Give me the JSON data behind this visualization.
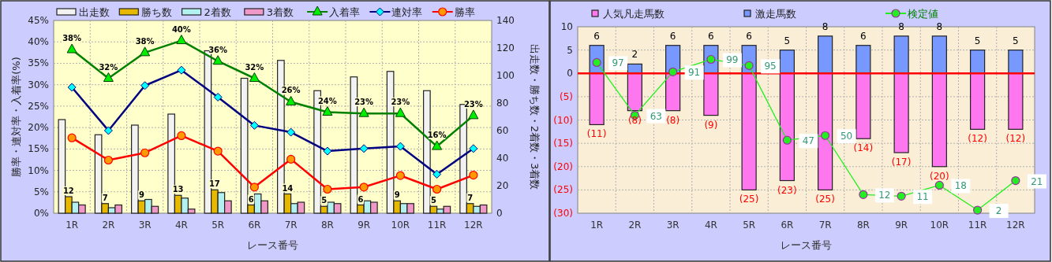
{
  "chart_data": [
    {
      "type": "bar",
      "categories": [
        "1R",
        "2R",
        "3R",
        "4R",
        "5R",
        "6R",
        "7R",
        "8R",
        "9R",
        "10R",
        "11R",
        "12R"
      ],
      "xlabel": "レース番号",
      "ylabel": "勝率・連対率・入着率(%)",
      "y2label": "出走数・勝ち数・2着数・3着数",
      "ylim": [
        0,
        45
      ],
      "yticks": [
        {
          "value": 0,
          "label": "0%"
        },
        {
          "value": 5,
          "label": "5%"
        },
        {
          "value": 10,
          "label": "10%"
        },
        {
          "value": 15,
          "label": "15%"
        },
        {
          "value": 20,
          "label": "20%"
        },
        {
          "value": 25,
          "label": "25%"
        },
        {
          "value": 30,
          "label": "30%"
        },
        {
          "value": 35,
          "label": "35%"
        },
        {
          "value": 40,
          "label": "40%"
        },
        {
          "value": 45,
          "label": "45%"
        }
      ],
      "y2lim": [
        0,
        140
      ],
      "y2ticks": [
        0,
        20,
        40,
        60,
        80,
        100,
        120,
        140
      ],
      "grid": true,
      "legend": "top",
      "series": [
        {
          "name": "出走数",
          "color": "#f2f2f2",
          "axis": "y2",
          "values": [
            68,
            57,
            64,
            72,
            118,
            98,
            111,
            89,
            99,
            103,
            89,
            79
          ]
        },
        {
          "name": "勝ち数",
          "color": "#e6b800",
          "axis": "y2",
          "values": [
            12,
            7,
            9,
            13,
            17,
            6,
            14,
            5,
            6,
            9,
            5,
            7
          ],
          "value_labels": [
            "12",
            "7",
            "9",
            "13",
            "17",
            "6",
            "14",
            "5",
            "6",
            "9",
            "5",
            "7"
          ]
        },
        {
          "name": "2着数",
          "color": "#b3f0f0",
          "axis": "y2",
          "values": [
            8,
            4,
            10,
            11,
            15,
            14,
            7,
            8,
            9,
            7,
            3,
            5
          ]
        },
        {
          "name": "3着数",
          "color": "#f099c8",
          "axis": "y2",
          "values": [
            6,
            6,
            5,
            3,
            9,
            9,
            8,
            7,
            8,
            7,
            5,
            6
          ]
        },
        {
          "name": "入着率",
          "type": "line",
          "color": "#008000",
          "marker": "triangle",
          "values": [
            38.2,
            31.5,
            37.5,
            40.3,
            35.5,
            31.5,
            26.0,
            23.6,
            23.3,
            23.3,
            15.6,
            22.8
          ],
          "value_labels": [
            "38%",
            "32%",
            "38%",
            "40%",
            "36%",
            "32%",
            "26%",
            "24%",
            "23%",
            "23%",
            "16%",
            "23%"
          ]
        },
        {
          "name": "連対率",
          "type": "line",
          "color": "#000080",
          "marker": "diamond",
          "values": [
            29.4,
            19.3,
            29.8,
            33.4,
            27.1,
            20.5,
            18.9,
            14.5,
            15.1,
            15.6,
            9.1,
            15.1
          ]
        },
        {
          "name": "勝率",
          "type": "line",
          "color": "#ff0000",
          "marker": "circle",
          "values": [
            17.6,
            12.4,
            14.1,
            18.1,
            14.5,
            6.1,
            12.6,
            5.6,
            6.1,
            8.8,
            5.6,
            8.9
          ]
        }
      ]
    },
    {
      "type": "bar",
      "stacked": true,
      "categories": [
        "1R",
        "2R",
        "3R",
        "4R",
        "5R",
        "6R",
        "7R",
        "8R",
        "9R",
        "10R",
        "11R",
        "12R"
      ],
      "xlabel": "レース番号",
      "ylim": [
        -30,
        10
      ],
      "yticks": [
        {
          "value": 10,
          "label": "10"
        },
        {
          "value": 5,
          "label": "5"
        },
        {
          "value": 0,
          "label": "0"
        },
        {
          "value": -5,
          "label": "(5)"
        },
        {
          "value": -10,
          "label": "(10)"
        },
        {
          "value": -15,
          "label": "(15)"
        },
        {
          "value": -20,
          "label": "(20)"
        },
        {
          "value": -25,
          "label": "(25)"
        },
        {
          "value": -30,
          "label": "(30)"
        }
      ],
      "y2lim": [
        0,
        120
      ],
      "grid": true,
      "legend": "top",
      "ref_lines": [
        {
          "axis": "y",
          "value": 0,
          "color": "#ff0000"
        }
      ],
      "series": [
        {
          "name": "人気凡走馬数",
          "color": "#ff77ee",
          "values": [
            -11,
            -8,
            -8,
            -9,
            -25,
            -23,
            -25,
            -14,
            -17,
            -20,
            -12,
            -12
          ],
          "value_labels": [
            "(11)",
            "(8)",
            "(8)",
            "(9)",
            "(25)",
            "(23)",
            "(25)",
            "(14)",
            "(17)",
            "(20)",
            "(12)",
            "(12)"
          ]
        },
        {
          "name": "激走馬数",
          "color": "#7799ff",
          "values": [
            6,
            2,
            6,
            6,
            6,
            5,
            8,
            6,
            8,
            8,
            5,
            5
          ],
          "value_labels": [
            "6",
            "2",
            "6",
            "6",
            "6",
            "5",
            "8",
            "6",
            "8",
            "8",
            "5",
            "5"
          ]
        },
        {
          "name": "検定値",
          "type": "line",
          "axis": "y2",
          "color": "#22ee22",
          "marker": "circle",
          "values": [
            97,
            63,
            91,
            99,
            95,
            47,
            50,
            12,
            11,
            18,
            2,
            21
          ],
          "value_labels": [
            "97",
            "63",
            "91",
            "99",
            "95",
            "47",
            "50",
            "12",
            "11",
            "18",
            "2",
            "21"
          ]
        }
      ]
    }
  ]
}
